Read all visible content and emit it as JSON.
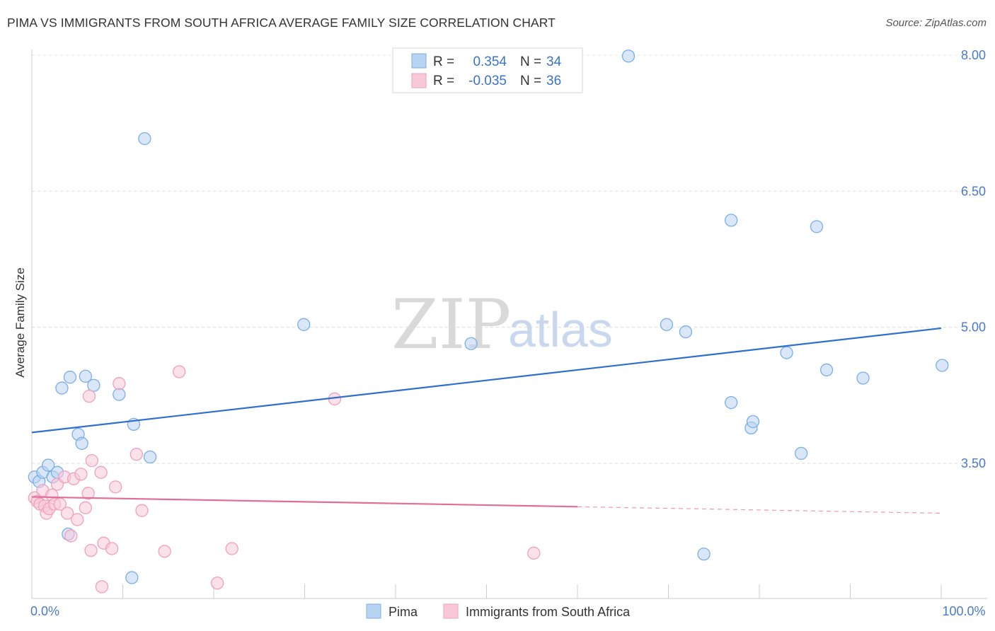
{
  "chart_data": {
    "type": "scatter",
    "title": "PIMA VS IMMIGRANTS FROM SOUTH AFRICA AVERAGE FAMILY SIZE CORRELATION CHART",
    "source": "Source: ZipAtlas.com",
    "xlabel": "",
    "ylabel": "Average Family Size",
    "xlim": [
      0,
      100
    ],
    "ylim": [
      2.0,
      8.25
    ],
    "x_tick_labels": [
      {
        "value": 0,
        "label": "0.0%"
      },
      {
        "value": 100,
        "label": "100.0%"
      }
    ],
    "y_ticks": [
      {
        "value": 8.0,
        "label": "8.00"
      },
      {
        "value": 6.5,
        "label": "6.50"
      },
      {
        "value": 5.0,
        "label": "5.00"
      },
      {
        "value": 3.5,
        "label": "3.50"
      }
    ],
    "legend_top": [
      {
        "r_label": "R =",
        "r_value": "0.354",
        "n_label": "N =",
        "n_value": "34"
      },
      {
        "r_label": "R =",
        "r_value": "-0.035",
        "n_label": "N =",
        "n_value": "36"
      }
    ],
    "watermark": {
      "zip": "ZIP",
      "atlas": "atlas"
    },
    "series": [
      {
        "name": "Pima",
        "color": "#7aaee8",
        "fill": "#b9d3f3",
        "line_color": "#2f6fce",
        "trend": {
          "x0": 0,
          "y0": 3.84,
          "x1": 100,
          "y1": 4.99,
          "solid_until": 100
        },
        "points": [
          [
            0.3,
            3.35
          ],
          [
            0.8,
            3.3
          ],
          [
            1.2,
            3.4
          ],
          [
            1.8,
            3.48
          ],
          [
            2.3,
            3.35
          ],
          [
            2.8,
            3.4
          ],
          [
            3.3,
            4.33
          ],
          [
            4.2,
            4.45
          ],
          [
            5.1,
            3.82
          ],
          [
            5.5,
            3.72
          ],
          [
            5.9,
            4.46
          ],
          [
            6.8,
            4.36
          ],
          [
            9.6,
            4.26
          ],
          [
            11.2,
            3.93
          ],
          [
            12.4,
            7.08
          ],
          [
            13.0,
            3.57
          ],
          [
            4.0,
            2.72
          ],
          [
            11.0,
            2.24
          ],
          [
            29.9,
            5.03
          ],
          [
            48.3,
            4.82
          ],
          [
            65.6,
            7.99
          ],
          [
            69.8,
            5.03
          ],
          [
            71.9,
            4.95
          ],
          [
            73.9,
            2.5
          ],
          [
            76.9,
            4.17
          ],
          [
            76.9,
            6.18
          ],
          [
            79.1,
            3.89
          ],
          [
            79.3,
            3.96
          ],
          [
            83.0,
            4.72
          ],
          [
            84.6,
            3.61
          ],
          [
            86.3,
            6.11
          ],
          [
            87.4,
            4.53
          ],
          [
            91.4,
            4.44
          ],
          [
            100.1,
            4.58
          ]
        ]
      },
      {
        "name": "Immigrants from South Africa",
        "color": "#f0a0bb",
        "fill": "#f8c8d8",
        "line_color": "#e26d98",
        "trend": {
          "x0": 0,
          "y0": 3.13,
          "x1": 100,
          "y1": 2.95,
          "solid_until": 60
        },
        "points": [
          [
            0.3,
            3.12
          ],
          [
            0.6,
            3.08
          ],
          [
            0.9,
            3.05
          ],
          [
            1.2,
            3.2
          ],
          [
            1.4,
            3.03
          ],
          [
            1.6,
            2.95
          ],
          [
            1.9,
            3.0
          ],
          [
            2.2,
            3.15
          ],
          [
            2.5,
            3.05
          ],
          [
            2.8,
            3.27
          ],
          [
            3.1,
            3.05
          ],
          [
            3.6,
            3.35
          ],
          [
            3.9,
            2.95
          ],
          [
            4.3,
            2.7
          ],
          [
            4.6,
            3.33
          ],
          [
            5.0,
            2.88
          ],
          [
            5.4,
            3.38
          ],
          [
            5.9,
            3.01
          ],
          [
            6.2,
            3.17
          ],
          [
            6.5,
            2.54
          ],
          [
            6.3,
            4.24
          ],
          [
            6.6,
            3.53
          ],
          [
            7.6,
            3.4
          ],
          [
            7.7,
            2.14
          ],
          [
            7.9,
            2.62
          ],
          [
            8.8,
            2.56
          ],
          [
            9.2,
            3.24
          ],
          [
            9.6,
            4.38
          ],
          [
            11.5,
            3.6
          ],
          [
            12.1,
            2.98
          ],
          [
            14.6,
            2.53
          ],
          [
            16.2,
            4.51
          ],
          [
            20.4,
            2.18
          ],
          [
            22.0,
            2.56
          ],
          [
            33.3,
            4.21
          ],
          [
            55.2,
            2.51
          ]
        ]
      }
    ]
  }
}
